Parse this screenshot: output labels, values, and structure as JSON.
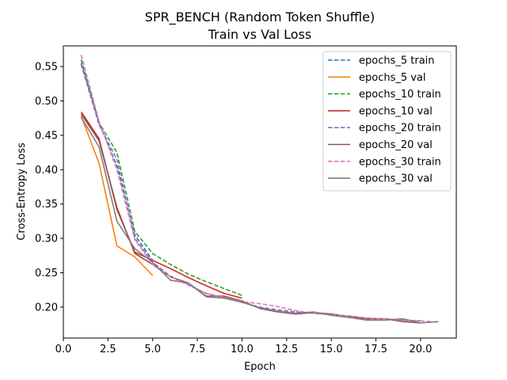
{
  "chart_data": {
    "type": "line",
    "title": "SPR_BENCH (Random Token Shuffle)",
    "subtitle": "Train vs Val Loss",
    "xlabel": "Epoch",
    "ylabel": "Cross-Entropy Loss",
    "xlim": [
      0,
      22
    ],
    "ylim": [
      0.155,
      0.58
    ],
    "x_ticks": [
      "0.0",
      "2.5",
      "5.0",
      "7.5",
      "10.0",
      "12.5",
      "15.0",
      "17.5",
      "20.0"
    ],
    "y_ticks": [
      "0.20",
      "0.25",
      "0.30",
      "0.35",
      "0.40",
      "0.45",
      "0.50",
      "0.55"
    ],
    "grid": false,
    "legend_position": "top-right",
    "series": [
      {
        "name": "epochs_5 train",
        "color": "#1f77b4",
        "dash": true,
        "x": [
          1,
          2,
          3,
          4,
          5
        ],
        "y": [
          0.555,
          0.468,
          0.405,
          0.305,
          0.268
        ]
      },
      {
        "name": "epochs_5 val",
        "color": "#ff7f0e",
        "dash": false,
        "x": [
          1,
          2,
          3,
          4,
          5
        ],
        "y": [
          0.478,
          0.409,
          0.289,
          0.273,
          0.246
        ]
      },
      {
        "name": "epochs_10 train",
        "color": "#2ca02c",
        "dash": true,
        "x": [
          1,
          2,
          3,
          4,
          5,
          6,
          7,
          8,
          9,
          10
        ],
        "y": [
          0.56,
          0.468,
          0.425,
          0.31,
          0.278,
          0.262,
          0.248,
          0.237,
          0.227,
          0.217
        ]
      },
      {
        "name": "epochs_10 val",
        "color": "#d62728",
        "dash": false,
        "x": [
          1,
          2,
          3,
          4,
          5,
          6,
          7,
          8,
          9,
          10
        ],
        "y": [
          0.484,
          0.445,
          0.342,
          0.28,
          0.268,
          0.256,
          0.243,
          0.231,
          0.22,
          0.213
        ]
      },
      {
        "name": "epochs_20 train",
        "color": "#9467bd",
        "dash": true,
        "x": [
          1,
          2,
          3,
          4,
          5,
          6,
          7,
          8,
          9,
          10,
          11,
          12,
          13,
          14,
          15,
          16,
          17,
          18,
          19,
          20
        ],
        "y": [
          0.553,
          0.465,
          0.415,
          0.3,
          0.265,
          0.245,
          0.232,
          0.22,
          0.214,
          0.207,
          0.2,
          0.196,
          0.193,
          0.191,
          0.189,
          0.187,
          0.184,
          0.183,
          0.181,
          0.18
        ]
      },
      {
        "name": "epochs_20 val",
        "color": "#8c564b",
        "dash": false,
        "x": [
          1,
          2,
          3,
          4,
          5,
          6,
          7,
          8,
          9,
          10,
          11,
          12,
          13,
          14,
          15,
          16,
          17,
          18,
          19,
          20
        ],
        "y": [
          0.481,
          0.442,
          0.345,
          0.278,
          0.262,
          0.244,
          0.235,
          0.216,
          0.216,
          0.209,
          0.198,
          0.193,
          0.19,
          0.192,
          0.19,
          0.186,
          0.183,
          0.183,
          0.179,
          0.177
        ]
      },
      {
        "name": "epochs_30 train",
        "color": "#e377c2",
        "dash": true,
        "x": [
          1,
          2,
          3,
          4,
          5,
          6,
          7,
          8,
          9,
          10,
          11,
          12,
          13,
          14,
          15,
          16,
          17,
          18,
          19,
          20,
          21
        ],
        "y": [
          0.567,
          0.47,
          0.4,
          0.298,
          0.262,
          0.244,
          0.233,
          0.22,
          0.214,
          0.208,
          0.205,
          0.201,
          0.195,
          0.191,
          0.189,
          0.187,
          0.184,
          0.183,
          0.181,
          0.18,
          0.178
        ]
      },
      {
        "name": "epochs_30 val",
        "color": "#7f7f7f",
        "dash": false,
        "x": [
          1,
          2,
          3,
          4,
          5,
          6,
          7,
          8,
          9,
          10,
          11,
          12,
          13,
          14,
          15,
          16,
          17,
          18,
          19,
          20,
          21
        ],
        "y": [
          0.476,
          0.433,
          0.325,
          0.285,
          0.265,
          0.239,
          0.235,
          0.215,
          0.213,
          0.207,
          0.199,
          0.194,
          0.191,
          0.193,
          0.188,
          0.185,
          0.181,
          0.181,
          0.183,
          0.177,
          0.179
        ]
      }
    ]
  }
}
